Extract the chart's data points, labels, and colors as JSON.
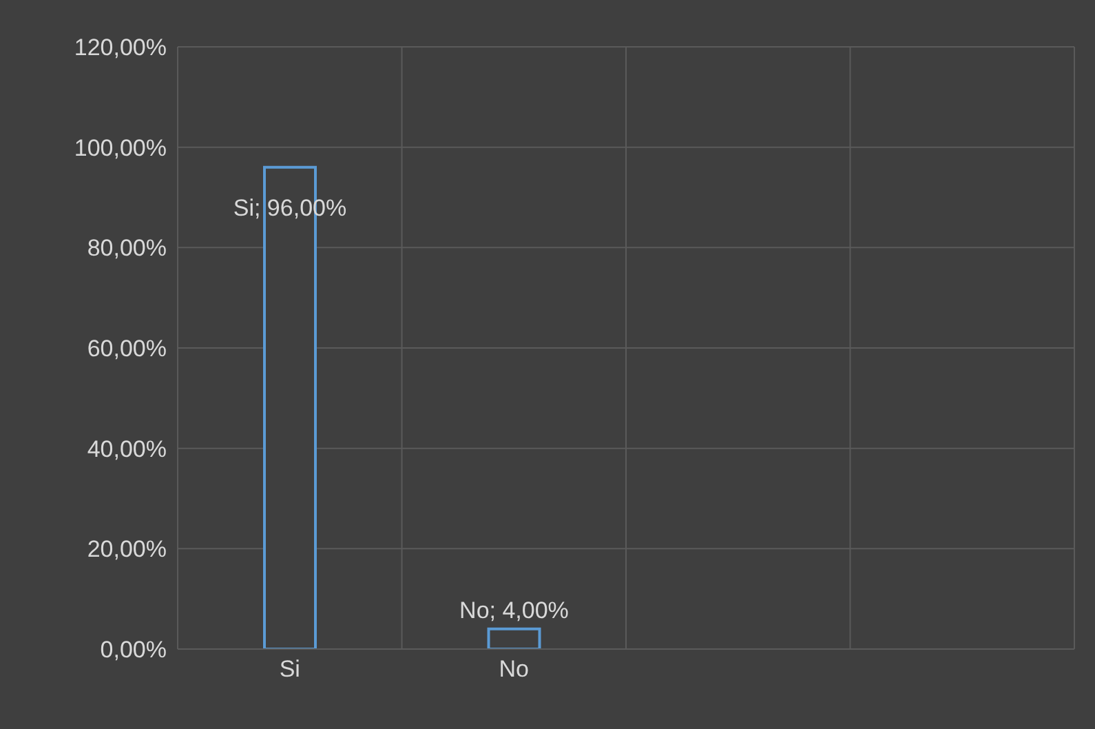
{
  "chart_data": {
    "type": "bar",
    "categories": [
      "Si",
      "No",
      null,
      null
    ],
    "values": [
      96,
      4,
      null,
      null
    ],
    "color": "#5b9bd5",
    "value_labels": [
      "Si; 96,00%",
      "No; 4,00%",
      null,
      null
    ],
    "ylim": [
      0,
      120
    ],
    "yticks": [
      {
        "value": 0,
        "label": "0,00%"
      },
      {
        "value": 20,
        "label": "20,00%"
      },
      {
        "value": 40,
        "label": "40,00%"
      },
      {
        "value": 60,
        "label": "60,00%"
      },
      {
        "value": 80,
        "label": "80,00%"
      },
      {
        "value": 100,
        "label": "100,00%"
      },
      {
        "value": 120,
        "label": "120,00%"
      }
    ],
    "grid": true,
    "legend": false
  }
}
